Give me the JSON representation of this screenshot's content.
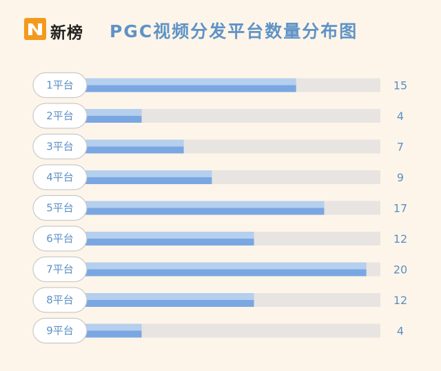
{
  "header": {
    "brand": "新榜",
    "title": "PGC视频分发平台数量分布图",
    "logo_icon": "newrank-logo-icon"
  },
  "colors": {
    "background": "#fdf5e9",
    "track": "#e8e4e1",
    "bar_light": "#b5cfee",
    "bar_dark": "#7aa7e2",
    "accent_text": "#5b8fc4",
    "logo_orange": "#f39a1e"
  },
  "chart_data": {
    "type": "bar",
    "orientation": "horizontal",
    "title": "PGC视频分发平台数量分布图",
    "categories": [
      "1平台",
      "2平台",
      "3平台",
      "4平台",
      "5平台",
      "6平台",
      "7平台",
      "8平台",
      "9平台"
    ],
    "values": [
      15,
      4,
      7,
      9,
      17,
      12,
      20,
      12,
      4
    ],
    "xlim": [
      0,
      21
    ],
    "grid": false,
    "legend": "none"
  }
}
